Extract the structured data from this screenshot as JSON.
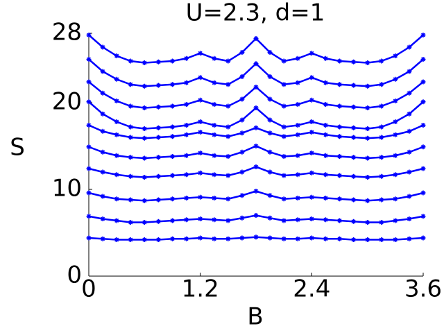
{
  "chart_data": {
    "type": "line",
    "title": "U=2.3, d=1",
    "x_label": "B",
    "y_label": "S",
    "x": [
      0,
      0.15,
      0.3,
      0.45,
      0.6,
      0.75,
      0.9,
      1.05,
      1.2,
      1.35,
      1.5,
      1.65,
      1.8,
      1.95,
      2.1,
      2.25,
      2.4,
      2.55,
      2.7,
      2.85,
      3.0,
      3.15,
      3.3,
      3.45,
      3.6
    ],
    "series": [
      {
        "color": "#0000ff",
        "values": [
          27.8,
          26.4,
          25.4,
          24.8,
          24.6,
          24.7,
          24.8,
          25.1,
          25.7,
          25.1,
          24.8,
          25.8,
          27.4,
          25.8,
          24.8,
          25.1,
          25.7,
          25.1,
          24.8,
          24.7,
          24.6,
          24.8,
          25.4,
          26.4,
          27.8
        ]
      },
      {
        "color": "#0000ff",
        "values": [
          25.0,
          23.6,
          22.7,
          22.1,
          21.9,
          22.0,
          22.1,
          22.3,
          22.9,
          22.3,
          22.1,
          23.0,
          24.5,
          23.0,
          22.1,
          22.3,
          22.9,
          22.3,
          22.1,
          22.0,
          21.9,
          22.1,
          22.7,
          23.6,
          25.0
        ]
      },
      {
        "color": "#0000ff",
        "values": [
          22.4,
          21.1,
          20.2,
          19.6,
          19.4,
          19.5,
          19.6,
          19.8,
          20.3,
          19.8,
          19.6,
          20.4,
          21.8,
          20.4,
          19.6,
          19.8,
          20.3,
          19.8,
          19.6,
          19.5,
          19.4,
          19.6,
          20.2,
          21.1,
          22.4
        ]
      },
      {
        "color": "#0000ff",
        "values": [
          20.1,
          18.7,
          17.8,
          17.2,
          17.0,
          17.1,
          17.2,
          17.4,
          17.8,
          17.4,
          17.2,
          18.0,
          19.4,
          18.0,
          17.2,
          17.4,
          17.8,
          17.4,
          17.2,
          17.1,
          17.0,
          17.2,
          17.8,
          18.7,
          20.1
        ]
      },
      {
        "color": "#0000ff",
        "values": [
          17.4,
          16.7,
          16.3,
          16.0,
          15.9,
          16.0,
          16.1,
          16.3,
          16.6,
          16.3,
          16.1,
          16.5,
          17.1,
          16.5,
          16.1,
          16.3,
          16.6,
          16.3,
          16.1,
          16.0,
          15.9,
          16.0,
          16.3,
          16.7,
          17.4
        ]
      },
      {
        "color": "#0000ff",
        "values": [
          14.9,
          14.3,
          13.9,
          13.7,
          13.6,
          13.7,
          13.8,
          13.9,
          14.2,
          13.9,
          13.8,
          14.3,
          15.0,
          14.3,
          13.8,
          13.9,
          14.2,
          13.9,
          13.8,
          13.7,
          13.6,
          13.7,
          13.9,
          14.3,
          14.9
        ]
      },
      {
        "color": "#0000ff",
        "values": [
          12.4,
          12.0,
          11.7,
          11.5,
          11.4,
          11.5,
          11.6,
          11.7,
          11.9,
          11.7,
          11.6,
          12.0,
          12.6,
          12.0,
          11.6,
          11.7,
          11.9,
          11.7,
          11.6,
          11.5,
          11.4,
          11.5,
          11.7,
          12.0,
          12.4
        ]
      },
      {
        "color": "#0000ff",
        "values": [
          9.6,
          9.2,
          8.9,
          8.8,
          8.7,
          8.8,
          8.9,
          9.0,
          9.1,
          9.0,
          8.9,
          9.3,
          9.8,
          9.3,
          8.9,
          9.0,
          9.1,
          9.0,
          8.9,
          8.8,
          8.7,
          8.8,
          8.9,
          9.2,
          9.6
        ]
      },
      {
        "color": "#0000ff",
        "values": [
          6.9,
          6.6,
          6.4,
          6.2,
          6.2,
          6.3,
          6.4,
          6.5,
          6.6,
          6.5,
          6.4,
          6.7,
          7.0,
          6.7,
          6.4,
          6.5,
          6.6,
          6.5,
          6.4,
          6.3,
          6.2,
          6.2,
          6.4,
          6.6,
          6.9
        ]
      },
      {
        "color": "#0000ff",
        "values": [
          4.4,
          4.3,
          4.2,
          4.2,
          4.2,
          4.2,
          4.3,
          4.3,
          4.4,
          4.3,
          4.3,
          4.4,
          4.5,
          4.4,
          4.3,
          4.3,
          4.4,
          4.3,
          4.3,
          4.2,
          4.2,
          4.2,
          4.2,
          4.3,
          4.4
        ]
      }
    ],
    "xlim": [
      0,
      3.6
    ],
    "xticks": [
      0,
      1.2,
      2.4,
      3.6
    ],
    "ylim": [
      0,
      28
    ],
    "yticks": [
      0,
      10,
      20,
      28
    ]
  }
}
